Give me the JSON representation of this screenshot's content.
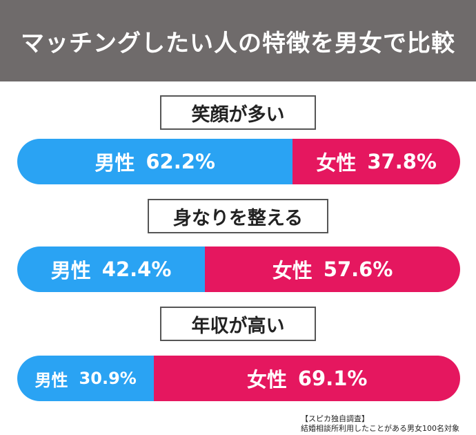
{
  "title": "マッチングしたい人の特徴を男女で比較",
  "colors": {
    "header_bg": "#6f6b6b",
    "male": "#2aa3f3",
    "female": "#e5175f"
  },
  "chart_data": {
    "type": "bar",
    "orientation": "horizontal-stacked-percent",
    "title": "マッチングしたい人の特徴を男女で比較",
    "unit": "%",
    "categories": [
      "笑顔が多い",
      "身なりを整える",
      "年収が高い"
    ],
    "series": [
      {
        "name": "男性",
        "values": [
          62.2,
          42.4,
          30.9
        ]
      },
      {
        "name": "女性",
        "values": [
          37.8,
          57.6,
          69.1
        ]
      }
    ],
    "value_labels": {
      "male": [
        "62.2%",
        "42.4%",
        "30.9%"
      ],
      "female": [
        "37.8%",
        "57.6%",
        "69.1%"
      ]
    }
  },
  "source": {
    "line1": "【スピカ独自調査】",
    "line2": "結婚相談所利用したことがある男女100名対象"
  }
}
